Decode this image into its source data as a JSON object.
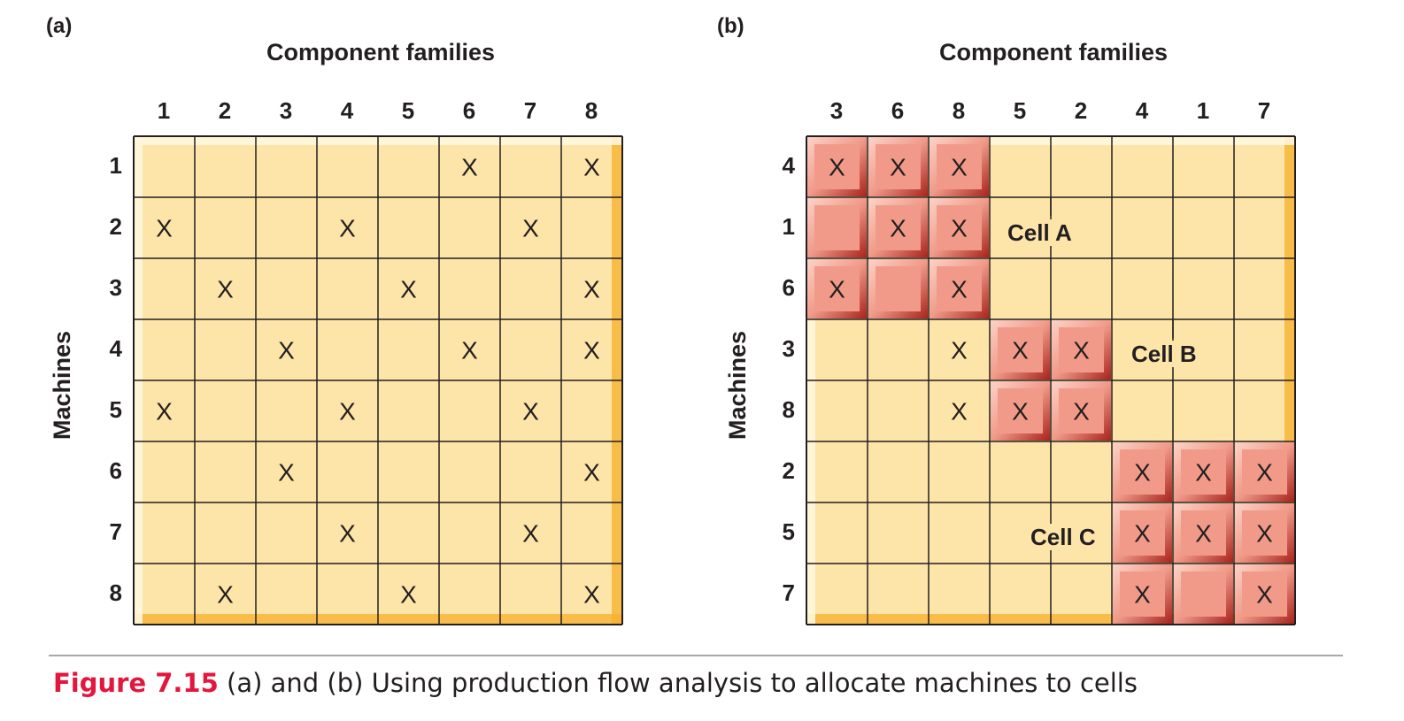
{
  "panels": [
    {
      "label": "(a)",
      "axis_title": "Component families",
      "row_title": "Machines",
      "columns": [
        "1",
        "2",
        "3",
        "4",
        "5",
        "6",
        "7",
        "8"
      ],
      "rows": [
        "1",
        "2",
        "3",
        "4",
        "5",
        "6",
        "7",
        "8"
      ],
      "marks": [
        "     X X",
        "X  X  X ",
        " X  X  X",
        "  X  X X",
        "X  X  X ",
        "  X    X",
        "   X  X ",
        " X  X  X"
      ],
      "highlights": []
    },
    {
      "label": "(b)",
      "axis_title": "Component families",
      "row_title": "Machines",
      "columns": [
        "3",
        "6",
        "8",
        "5",
        "2",
        "4",
        "1",
        "7"
      ],
      "rows": [
        "4",
        "1",
        "6",
        "3",
        "8",
        "2",
        "5",
        "7"
      ],
      "marks": [
        "XXX     ",
        " XX     ",
        "X X     ",
        "  XXX   ",
        "  XXX   ",
        "     XXX",
        "     XXX",
        "     X X"
      ],
      "highlights": [
        {
          "rows": [
            0,
            1,
            2
          ],
          "cols": [
            0,
            1,
            2
          ]
        },
        {
          "rows": [
            3,
            4
          ],
          "cols": [
            3,
            4
          ]
        },
        {
          "rows": [
            5,
            6,
            7
          ],
          "cols": [
            5,
            6,
            7
          ]
        }
      ],
      "cell_labels": [
        "Cell A",
        "Cell B",
        "Cell C"
      ]
    }
  ],
  "caption": {
    "figure_number": "Figure 7.15",
    "text": " (a) and (b) Using production flow analysis to allocate machines to cells"
  },
  "colors": {
    "cell_fill": "#fde4a8",
    "grid_line": "#231f20",
    "highlight": "#f19a89",
    "highlight_shadow": "#a8231c",
    "frame_shadow": "#f6b230",
    "caption_accent": "#e3173e"
  }
}
